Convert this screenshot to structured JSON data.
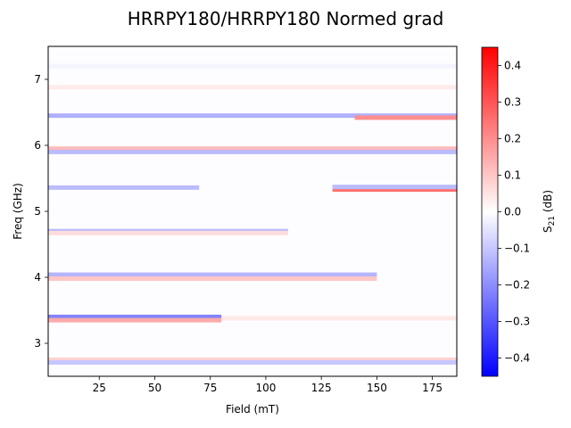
{
  "chart_data": {
    "type": "heatmap",
    "title": "HRRPY180/HRRPY180 Normed grad",
    "xlabel": "Field (mT)",
    "ylabel": "Freq (GHz)",
    "xlim": [
      2,
      186
    ],
    "ylim": [
      2.5,
      7.5
    ],
    "x_ticks": [
      25,
      50,
      75,
      100,
      125,
      150,
      175
    ],
    "y_ticks": [
      3,
      4,
      5,
      6,
      7
    ],
    "colorbar": {
      "label": "S21 (dB)",
      "label_main": "S",
      "label_sub": "21",
      "label_unit": " (dB)",
      "min": -0.45,
      "max": 0.45,
      "ticks": [
        -0.4,
        -0.3,
        -0.2,
        -0.1,
        0.0,
        0.1,
        0.2,
        0.3,
        0.4
      ],
      "tick_labels": [
        "−0.4",
        "−0.3",
        "−0.2",
        "−0.1",
        "0.0",
        "0.1",
        "0.2",
        "0.3",
        "0.4"
      ],
      "colormap": "bwr",
      "color_low": "#0000ff",
      "color_mid": "#ffffff",
      "color_high": "#ff0000"
    },
    "bands": [
      {
        "freq": 7.2,
        "x0": 2,
        "x1": 186,
        "value": -0.02
      },
      {
        "freq": 6.88,
        "x0": 2,
        "x1": 186,
        "value": 0.035
      },
      {
        "freq": 6.45,
        "x0": 2,
        "x1": 186,
        "value": -0.14
      },
      {
        "freq": 6.42,
        "x0": 140,
        "x1": 186,
        "value": 0.2
      },
      {
        "freq": 5.95,
        "x0": 2,
        "x1": 186,
        "value": 0.12
      },
      {
        "freq": 5.9,
        "x0": 2,
        "x1": 186,
        "value": -0.12
      },
      {
        "freq": 5.36,
        "x0": 2,
        "x1": 70,
        "value": -0.12
      },
      {
        "freq": 5.33,
        "x0": 130,
        "x1": 186,
        "value": 0.25
      },
      {
        "freq": 5.37,
        "x0": 130,
        "x1": 186,
        "value": -0.12
      },
      {
        "freq": 4.7,
        "x0": 2,
        "x1": 110,
        "value": -0.12
      },
      {
        "freq": 4.67,
        "x0": 2,
        "x1": 110,
        "value": 0.06
      },
      {
        "freq": 4.04,
        "x0": 2,
        "x1": 150,
        "value": -0.13
      },
      {
        "freq": 3.98,
        "x0": 2,
        "x1": 150,
        "value": 0.1
      },
      {
        "freq": 3.4,
        "x0": 2,
        "x1": 80,
        "value": -0.22
      },
      {
        "freq": 3.35,
        "x0": 2,
        "x1": 80,
        "value": 0.15
      },
      {
        "freq": 3.38,
        "x0": 80,
        "x1": 186,
        "value": 0.04
      },
      {
        "freq": 2.75,
        "x0": 2,
        "x1": 186,
        "value": 0.08
      },
      {
        "freq": 2.71,
        "x0": 2,
        "x1": 186,
        "value": -0.1
      }
    ]
  }
}
